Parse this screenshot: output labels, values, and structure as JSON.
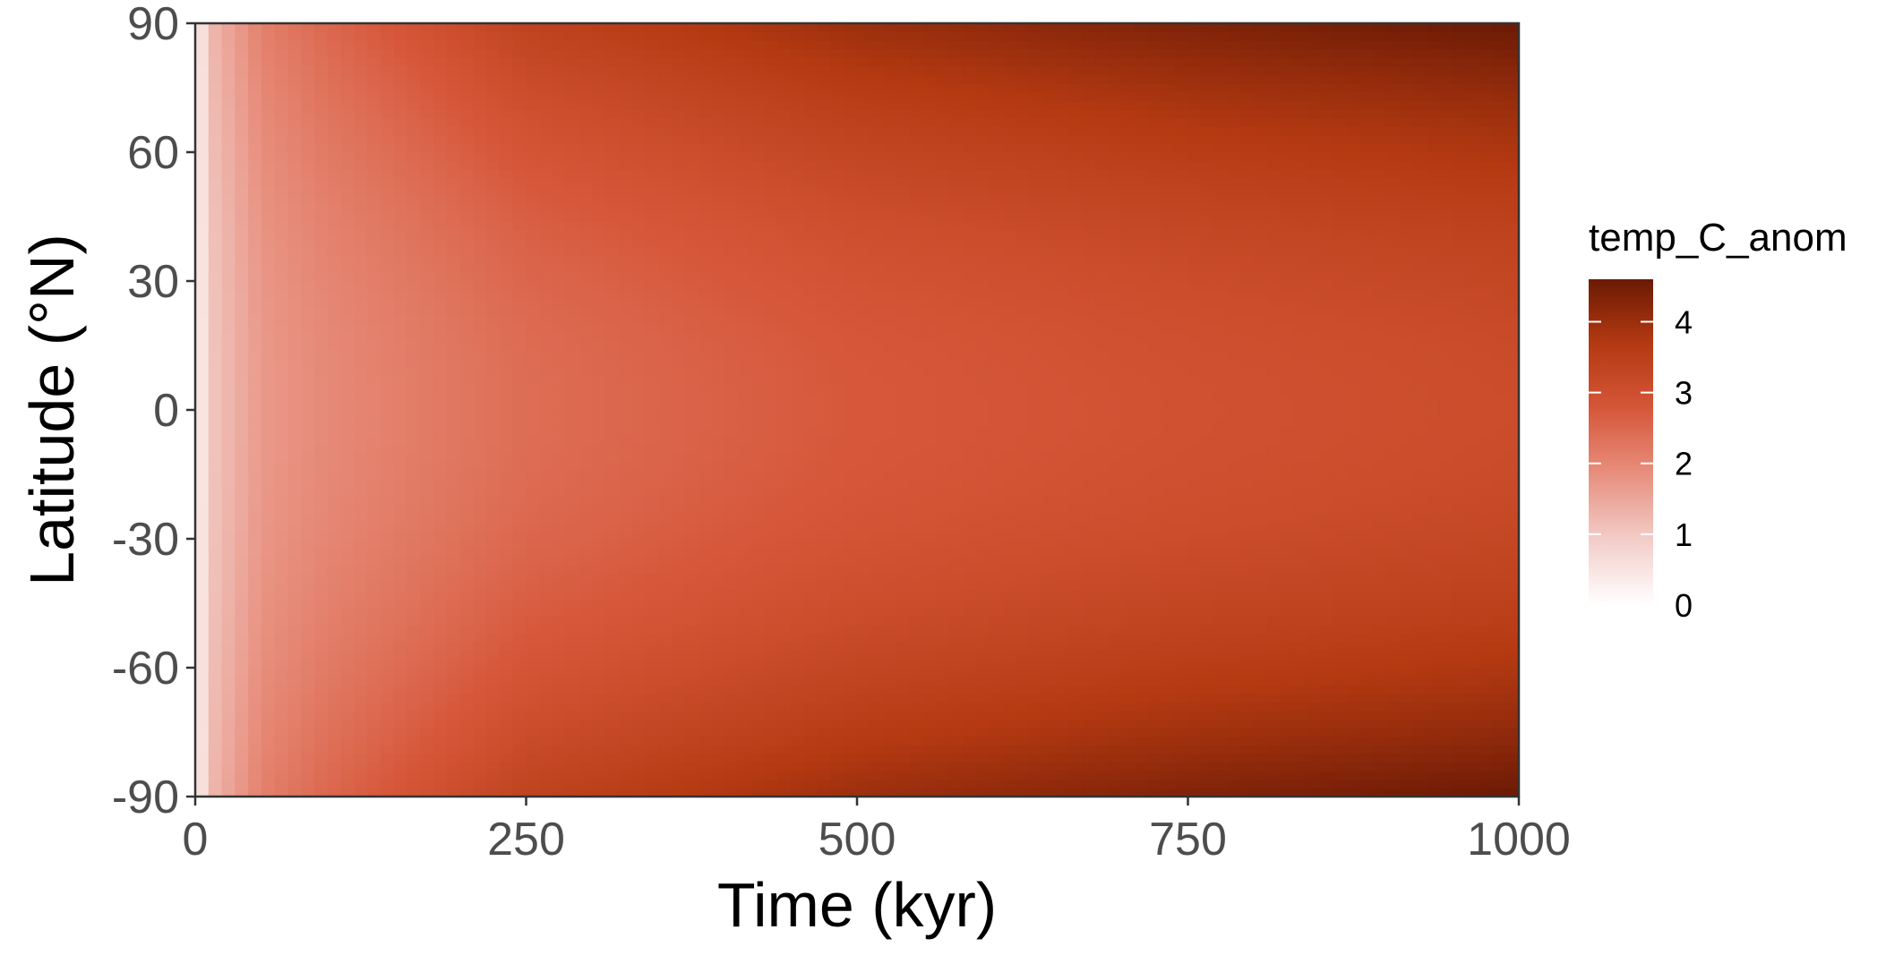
{
  "chart_data": {
    "type": "heatmap",
    "title": "",
    "xlabel": "Time (kyr)",
    "ylabel": "Latitude (°N)",
    "xlim": [
      0,
      1000
    ],
    "ylim": [
      -90,
      90
    ],
    "x_ticks": [
      0,
      250,
      500,
      750,
      1000
    ],
    "y_ticks": [
      -90,
      -60,
      -30,
      0,
      30,
      60,
      90
    ],
    "grid": false,
    "cell_width_kyr": 10,
    "cell_height_deg": 2,
    "colorbar": {
      "title": "temp_C_anom",
      "min": 0,
      "max": 4.6,
      "ticks": [
        0,
        1,
        2,
        3,
        4
      ],
      "colors": [
        "#ffffff",
        "#f2cdc8",
        "#e8907f",
        "#d6573a",
        "#b53a12",
        "#6b1a05"
      ],
      "placement": "right"
    },
    "model": {
      "description_fields": "value(t, lat) = equator_value(t) + (pole_value(t) - equator_value(t)) * (|lat|/90)^2",
      "equator_samples": [
        [
          0,
          0.0
        ],
        [
          10,
          1.0
        ],
        [
          50,
          1.7
        ],
        [
          100,
          1.95
        ],
        [
          250,
          2.4
        ],
        [
          500,
          2.75
        ],
        [
          750,
          2.95
        ],
        [
          1000,
          3.1
        ]
      ],
      "pole_samples": [
        [
          0,
          0.0
        ],
        [
          10,
          1.2
        ],
        [
          50,
          2.1
        ],
        [
          100,
          2.5
        ],
        [
          250,
          3.4
        ],
        [
          500,
          4.0
        ],
        [
          750,
          4.35
        ],
        [
          1000,
          4.6
        ]
      ]
    }
  }
}
